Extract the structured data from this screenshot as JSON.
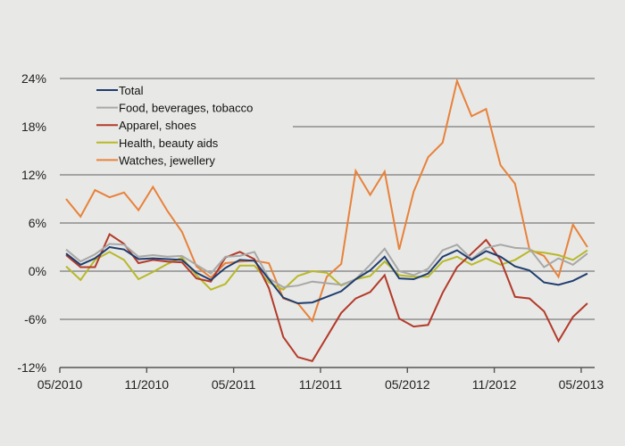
{
  "chart_data": {
    "type": "line",
    "title": "",
    "xlabel": "",
    "ylabel": "",
    "ylim": [
      -12,
      24
    ],
    "yticks": [
      24,
      18,
      12,
      6,
      0,
      -6,
      -12
    ],
    "ytick_labels": [
      "24%",
      "18%",
      "12%",
      "6%",
      "0%",
      "-6%",
      "-12%"
    ],
    "xtick_labels": [
      "05/2010",
      "11/2010",
      "05/2011",
      "11/2011",
      "05/2012",
      "11/2012",
      "05/2013"
    ],
    "x_start": "05/2010",
    "x_end": "05/2013",
    "x_step": "monthly",
    "grid": true,
    "legend_position": "top-left",
    "series": [
      {
        "name": "Total",
        "color": "#1f3d6e",
        "values": [
          2.2,
          0.8,
          1.6,
          3.0,
          2.7,
          1.5,
          1.6,
          1.5,
          1.4,
          -0.2,
          -1.1,
          0.4,
          1.4,
          1.3,
          -1.0,
          -3.3,
          -4.0,
          -3.9,
          -3.2,
          -2.5,
          -1.0,
          0.1,
          1.8,
          -0.9,
          -1.0,
          -0.3,
          1.8,
          2.6,
          1.4,
          2.5,
          1.8,
          0.6,
          0.1,
          -1.4,
          -1.7,
          -1.2,
          -0.3
        ]
      },
      {
        "name": "Food, beverages, tobacco",
        "color": "#a8a8a8",
        "values": [
          2.7,
          1.2,
          2.1,
          3.4,
          3.3,
          1.8,
          2.0,
          1.8,
          1.9,
          0.8,
          -0.3,
          1.8,
          1.9,
          2.4,
          -0.9,
          -2.0,
          -1.8,
          -1.3,
          -1.5,
          -1.7,
          -1.0,
          0.8,
          2.8,
          0.0,
          -0.5,
          0.3,
          2.6,
          3.3,
          1.5,
          2.9,
          3.3,
          2.9,
          2.8,
          0.5,
          1.6,
          0.8,
          2.2
        ]
      },
      {
        "name": "Apparel, shoes",
        "color": "#b33a2a",
        "values": [
          2.0,
          0.5,
          0.5,
          4.6,
          3.4,
          1.0,
          1.4,
          1.2,
          1.1,
          -0.9,
          -1.3,
          1.7,
          2.4,
          1.5,
          -2.1,
          -8.2,
          -10.7,
          -11.2,
          -8.2,
          -5.2,
          -3.4,
          -2.6,
          -0.5,
          -5.9,
          -6.9,
          -6.7,
          -2.7,
          0.5,
          2.2,
          3.9,
          1.4,
          -3.2,
          -3.4,
          -5.0,
          -8.7,
          -5.7,
          -4.0
        ]
      },
      {
        "name": "Health, beauty aids",
        "color": "#b8b82a",
        "values": [
          0.6,
          -1.1,
          1.4,
          2.4,
          1.4,
          -1.0,
          -0.1,
          0.9,
          1.7,
          -0.5,
          -2.3,
          -1.6,
          0.7,
          0.7,
          -1.4,
          -2.3,
          -0.6,
          0.0,
          -0.2,
          -1.8,
          -1.0,
          -0.6,
          1.2,
          -0.5,
          -0.7,
          -0.7,
          1.2,
          1.8,
          0.8,
          1.6,
          0.8,
          1.4,
          2.5,
          2.3,
          2.0,
          1.4,
          2.6
        ]
      },
      {
        "name": "Watches, jewellery",
        "color": "#e8823a",
        "values": [
          9.0,
          6.8,
          10.1,
          9.2,
          9.8,
          7.6,
          10.5,
          7.5,
          4.9,
          0.6,
          -0.8,
          1.0,
          1.2,
          1.3,
          1.0,
          -3.4,
          -4.0,
          -6.2,
          -0.7,
          0.9,
          12.5,
          9.5,
          12.4,
          2.7,
          9.9,
          14.2,
          16.0,
          23.7,
          19.3,
          20.2,
          13.2,
          10.9,
          2.7,
          1.9,
          -0.7,
          5.8,
          3.0
        ]
      }
    ]
  }
}
